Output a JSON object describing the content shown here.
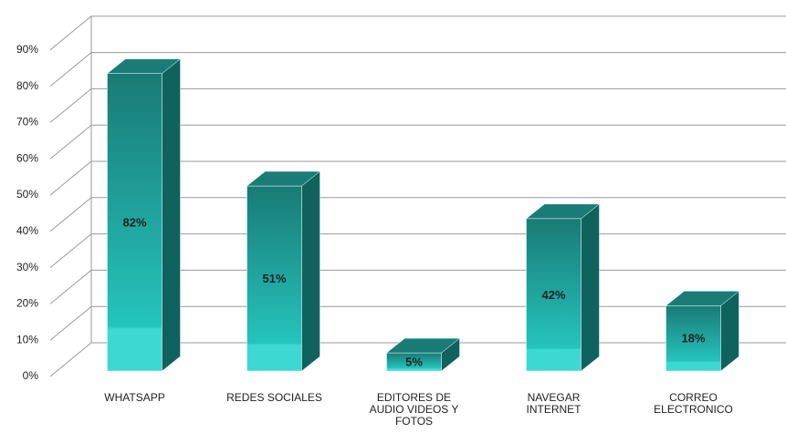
{
  "chart_data": {
    "type": "bar3d",
    "categories": [
      "WHATSAPP",
      "REDES SOCIALES",
      "EDITORES DE\nAUDIO VIDEOS Y\nFOTOS",
      "NAVEGAR\nINTERNET",
      "CORREO\nELECTRONICO"
    ],
    "values": [
      82,
      51,
      5,
      42,
      18
    ],
    "value_labels": [
      "82%",
      "51%",
      "5%",
      "42%",
      "18%"
    ],
    "color": "#1a9c96",
    "ylim": [
      0,
      90
    ],
    "yticks": [
      {
        "value": 0,
        "label": "0%"
      },
      {
        "value": 10,
        "label": "10%"
      },
      {
        "value": 20,
        "label": "20%"
      },
      {
        "value": 30,
        "label": "30%"
      },
      {
        "value": 40,
        "label": "40%"
      },
      {
        "value": 50,
        "label": "50%"
      },
      {
        "value": 60,
        "label": "60%"
      },
      {
        "value": 70,
        "label": "70%"
      },
      {
        "value": 80,
        "label": "80%"
      },
      {
        "value": 90,
        "label": "90%"
      }
    ],
    "grid": true
  }
}
